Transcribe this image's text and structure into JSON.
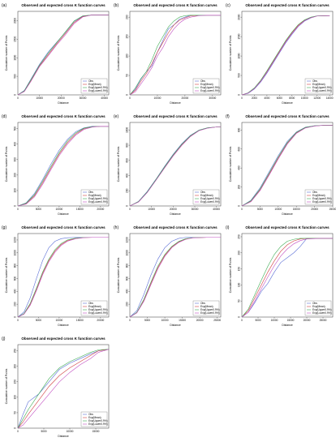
{
  "title": "Observed and expected cross K function curves",
  "xlabel": "Distance",
  "ylabel": "Cumulative number of Points",
  "legend": [
    "Obs",
    "Exp(Mean)",
    "Exp(Upper0.9%)",
    "Exp(Lower0.9%)"
  ],
  "colors": {
    "obs": "#5b6fd6",
    "mean": "#d04040",
    "upper": "#3fae55",
    "lower": "#c24fc2"
  },
  "chart_data": [
    {
      "id": "a",
      "label": "(a)",
      "type": "line",
      "xticks": [
        10000,
        20000,
        30000,
        40000
      ],
      "xlim": [
        0,
        42000
      ],
      "yticks": [
        500,
        1000,
        1500,
        2000
      ],
      "ylim": [
        0,
        2250
      ],
      "x": [
        0,
        3000,
        6000,
        10000,
        14000,
        18000,
        22000,
        26000,
        30000,
        34000,
        38000,
        42000
      ],
      "series": [
        {
          "key": "obs",
          "values": [
            0,
            120,
            420,
            820,
            1150,
            1420,
            1690,
            1980,
            2120,
            2150,
            2150,
            2150
          ]
        },
        {
          "key": "mean",
          "values": [
            0,
            100,
            380,
            780,
            1080,
            1380,
            1660,
            1950,
            2110,
            2150,
            2150,
            2150
          ]
        },
        {
          "key": "upper",
          "values": [
            0,
            110,
            400,
            800,
            1120,
            1410,
            1700,
            1990,
            2130,
            2150,
            2150,
            2150
          ]
        },
        {
          "key": "lower",
          "values": [
            0,
            90,
            360,
            760,
            1050,
            1350,
            1620,
            1920,
            2100,
            2150,
            2150,
            2150
          ]
        }
      ]
    },
    {
      "id": "b",
      "label": "(b)",
      "type": "line",
      "xticks": [
        10000,
        20000,
        30000
      ],
      "xlim": [
        0,
        33000
      ],
      "yticks": [
        50,
        100,
        150,
        200
      ],
      "ylim": [
        0,
        215
      ],
      "x": [
        0,
        2000,
        4000,
        6000,
        8000,
        10000,
        12000,
        14000,
        16000,
        18000,
        20000,
        22000,
        25000,
        28000,
        33000
      ],
      "series": [
        {
          "key": "obs",
          "values": [
            0,
            15,
            40,
            60,
            75,
            110,
            140,
            170,
            180,
            195,
            200,
            205,
            205,
            205,
            205
          ]
        },
        {
          "key": "mean",
          "values": [
            0,
            12,
            35,
            55,
            80,
            110,
            135,
            160,
            180,
            192,
            198,
            203,
            205,
            205,
            205
          ]
        },
        {
          "key": "upper",
          "values": [
            0,
            18,
            42,
            60,
            90,
            125,
            150,
            175,
            190,
            200,
            204,
            205,
            205,
            205,
            205
          ]
        },
        {
          "key": "lower",
          "values": [
            0,
            8,
            28,
            48,
            70,
            100,
            122,
            150,
            170,
            185,
            195,
            200,
            204,
            205,
            205
          ]
        }
      ]
    },
    {
      "id": "c",
      "label": "(c)",
      "type": "line",
      "xticks": [
        2000,
        4000,
        6000,
        8000,
        10000,
        12000,
        14000
      ],
      "xlim": [
        0,
        14500
      ],
      "yticks": [
        500,
        1000,
        1500,
        2000
      ],
      "ylim": [
        0,
        2150
      ],
      "x": [
        0,
        1000,
        2000,
        3000,
        4000,
        5000,
        6000,
        7000,
        8000,
        9000,
        10000,
        11000,
        12000,
        14000
      ],
      "series": [
        {
          "key": "obs",
          "values": [
            0,
            40,
            150,
            330,
            560,
            820,
            1080,
            1340,
            1560,
            1760,
            1900,
            1980,
            2030,
            2040
          ]
        },
        {
          "key": "mean",
          "values": [
            0,
            50,
            170,
            360,
            600,
            860,
            1120,
            1380,
            1600,
            1790,
            1920,
            1990,
            2030,
            2040
          ]
        },
        {
          "key": "upper",
          "values": [
            0,
            55,
            180,
            375,
            620,
            880,
            1140,
            1400,
            1620,
            1810,
            1930,
            2000,
            2035,
            2040
          ]
        },
        {
          "key": "lower",
          "values": [
            0,
            45,
            160,
            345,
            580,
            840,
            1100,
            1360,
            1580,
            1770,
            1910,
            1985,
            2030,
            2040
          ]
        }
      ]
    },
    {
      "id": "d",
      "label": "(d)",
      "type": "line",
      "xticks": [
        5000,
        10000,
        15000,
        20000
      ],
      "xlim": [
        0,
        22000
      ],
      "yticks": [
        100,
        200,
        300,
        400,
        500
      ],
      "ylim": [
        0,
        540
      ],
      "x": [
        0,
        2000,
        4000,
        6000,
        8000,
        10000,
        12000,
        14000,
        16000,
        18000,
        20000,
        22000
      ],
      "series": [
        {
          "key": "obs",
          "values": [
            0,
            20,
            80,
            170,
            270,
            360,
            430,
            480,
            505,
            515,
            515,
            515
          ]
        },
        {
          "key": "mean",
          "values": [
            0,
            15,
            65,
            150,
            245,
            335,
            410,
            465,
            500,
            512,
            515,
            515
          ]
        },
        {
          "key": "upper",
          "values": [
            0,
            18,
            72,
            160,
            255,
            345,
            420,
            472,
            503,
            513,
            515,
            515
          ]
        },
        {
          "key": "lower",
          "values": [
            0,
            12,
            58,
            140,
            235,
            325,
            400,
            458,
            495,
            510,
            515,
            515
          ]
        }
      ]
    },
    {
      "id": "e",
      "label": "(e)",
      "type": "line",
      "xticks": [
        10000,
        20000,
        30000,
        40000
      ],
      "xlim": [
        0,
        42000
      ],
      "yticks": [
        200,
        400,
        600,
        800,
        1000
      ],
      "ylim": [
        0,
        1100
      ],
      "x": [
        0,
        4000,
        8000,
        12000,
        16000,
        20000,
        24000,
        28000,
        32000,
        36000,
        40000,
        42000
      ],
      "series": [
        {
          "key": "obs",
          "values": [
            0,
            60,
            190,
            350,
            520,
            680,
            820,
            930,
            1000,
            1030,
            1040,
            1040
          ]
        },
        {
          "key": "mean",
          "values": [
            0,
            55,
            180,
            340,
            505,
            665,
            805,
            920,
            995,
            1028,
            1040,
            1040
          ]
        },
        {
          "key": "upper",
          "values": [
            0,
            58,
            185,
            345,
            512,
            672,
            812,
            925,
            998,
            1030,
            1040,
            1040
          ]
        },
        {
          "key": "lower",
          "values": [
            0,
            52,
            175,
            335,
            498,
            658,
            798,
            915,
            992,
            1025,
            1040,
            1040
          ]
        }
      ]
    },
    {
      "id": "f",
      "label": "(f)",
      "type": "line",
      "xticks": [
        5000,
        10000,
        15000,
        20000,
        25000
      ],
      "xlim": [
        0,
        25000
      ],
      "yticks": [
        200,
        400,
        600,
        800
      ],
      "ylim": [
        0,
        880
      ],
      "x": [
        0,
        2500,
        5000,
        7500,
        10000,
        12500,
        15000,
        17500,
        20000,
        22500,
        25000
      ],
      "series": [
        {
          "key": "obs",
          "values": [
            0,
            60,
            190,
            360,
            530,
            680,
            780,
            830,
            845,
            850,
            850
          ]
        },
        {
          "key": "mean",
          "values": [
            0,
            50,
            170,
            335,
            505,
            660,
            770,
            825,
            843,
            850,
            850
          ]
        },
        {
          "key": "upper",
          "values": [
            0,
            55,
            178,
            345,
            515,
            668,
            775,
            828,
            845,
            850,
            850
          ]
        },
        {
          "key": "lower",
          "values": [
            0,
            45,
            162,
            325,
            495,
            652,
            765,
            822,
            842,
            850,
            850
          ]
        }
      ]
    },
    {
      "id": "g",
      "label": "(g)",
      "type": "line",
      "xticks": [
        5000,
        10000,
        15000,
        20000
      ],
      "xlim": [
        0,
        22000
      ],
      "yticks": [
        200,
        400,
        600,
        800,
        1000,
        1200
      ],
      "ylim": [
        0,
        1300
      ],
      "x": [
        0,
        1500,
        3000,
        4500,
        6000,
        7500,
        9000,
        10500,
        12000,
        14000,
        16000,
        18000,
        22000
      ],
      "series": [
        {
          "key": "obs",
          "values": [
            0,
            80,
            300,
            600,
            880,
            1080,
            1180,
            1220,
            1235,
            1240,
            1240,
            1240,
            1240
          ]
        },
        {
          "key": "mean",
          "values": [
            0,
            50,
            200,
            430,
            680,
            880,
            1030,
            1130,
            1190,
            1225,
            1238,
            1240,
            1240
          ]
        },
        {
          "key": "upper",
          "values": [
            0,
            55,
            215,
            450,
            700,
            900,
            1050,
            1145,
            1200,
            1230,
            1240,
            1240,
            1240
          ]
        },
        {
          "key": "lower",
          "values": [
            0,
            45,
            185,
            410,
            660,
            860,
            1010,
            1115,
            1180,
            1220,
            1236,
            1240,
            1240
          ]
        }
      ]
    },
    {
      "id": "h",
      "label": "(h)",
      "type": "line",
      "xticks": [
        5000,
        10000,
        15000,
        20000,
        25000
      ],
      "xlim": [
        0,
        26000
      ],
      "yticks": [
        200,
        400,
        600,
        800,
        1000,
        1200
      ],
      "ylim": [
        0,
        1300
      ],
      "x": [
        0,
        2000,
        4000,
        6000,
        8000,
        10000,
        12000,
        14000,
        16000,
        18000,
        22000,
        26000
      ],
      "series": [
        {
          "key": "obs",
          "values": [
            0,
            100,
            350,
            650,
            900,
            1080,
            1180,
            1225,
            1240,
            1240,
            1240,
            1240
          ]
        },
        {
          "key": "mean",
          "values": [
            0,
            70,
            260,
            520,
            770,
            960,
            1090,
            1170,
            1215,
            1235,
            1240,
            1240
          ]
        },
        {
          "key": "upper",
          "values": [
            0,
            75,
            275,
            540,
            790,
            975,
            1100,
            1178,
            1220,
            1237,
            1240,
            1240
          ]
        },
        {
          "key": "lower",
          "values": [
            0,
            65,
            245,
            500,
            750,
            945,
            1080,
            1162,
            1210,
            1233,
            1240,
            1240
          ]
        }
      ]
    },
    {
      "id": "i",
      "label": "(i)",
      "type": "line",
      "xticks": [
        5000,
        10000,
        15000,
        20000,
        25000
      ],
      "xlim": [
        0,
        28000
      ],
      "yticks": [
        50,
        100,
        150,
        200,
        250
      ],
      "ylim": [
        0,
        260
      ],
      "x": [
        0,
        2000,
        4000,
        6000,
        8000,
        10000,
        12000,
        14000,
        16000,
        18000,
        20000,
        24000,
        28000
      ],
      "series": [
        {
          "key": "obs",
          "values": [
            0,
            15,
            45,
            80,
            105,
            140,
            170,
            185,
            200,
            220,
            245,
            245,
            245
          ]
        },
        {
          "key": "mean",
          "values": [
            0,
            20,
            60,
            100,
            140,
            175,
            205,
            225,
            237,
            243,
            245,
            245,
            245
          ]
        },
        {
          "key": "upper",
          "values": [
            0,
            25,
            70,
            115,
            158,
            195,
            220,
            236,
            242,
            245,
            245,
            245,
            245
          ]
        },
        {
          "key": "lower",
          "values": [
            0,
            15,
            50,
            88,
            125,
            160,
            190,
            212,
            228,
            238,
            243,
            245,
            245
          ]
        }
      ]
    },
    {
      "id": "j",
      "label": "(j)",
      "type": "line",
      "xticks": [
        5000,
        10000,
        15000
      ],
      "xlim": [
        0,
        17500
      ],
      "yticks": [
        50,
        100,
        150,
        200,
        250
      ],
      "ylim": [
        0,
        270
      ],
      "x": [
        0,
        1000,
        2000,
        4000,
        6000,
        8000,
        10000,
        12000,
        14000,
        15500,
        17500
      ],
      "series": [
        {
          "key": "obs",
          "values": [
            0,
            45,
            85,
            110,
            150,
            190,
            210,
            225,
            240,
            250,
            255
          ]
        },
        {
          "key": "mean",
          "values": [
            0,
            20,
            45,
            90,
            135,
            170,
            195,
            215,
            235,
            250,
            255
          ]
        },
        {
          "key": "upper",
          "values": [
            0,
            30,
            60,
            110,
            160,
            195,
            215,
            230,
            245,
            253,
            255
          ]
        },
        {
          "key": "lower",
          "values": [
            0,
            10,
            30,
            70,
            110,
            150,
            180,
            205,
            225,
            245,
            255
          ]
        }
      ]
    }
  ]
}
